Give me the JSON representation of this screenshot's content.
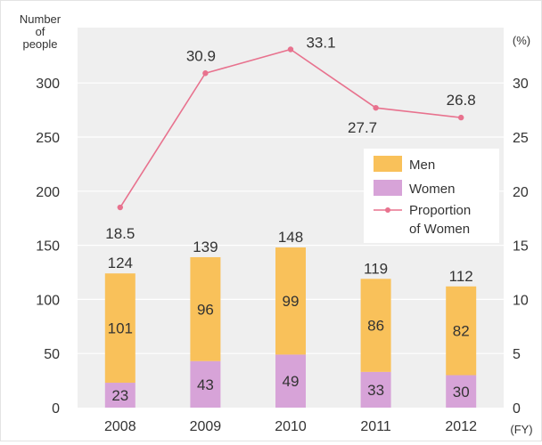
{
  "chart_data": {
    "type": "bar",
    "stacked": true,
    "categories": [
      "2008",
      "2009",
      "2010",
      "2011",
      "2012"
    ],
    "xlabel": "(FY)",
    "ylabel_left": "Number of people",
    "ylabel_right": "(%)",
    "ylim_left": [
      0,
      350
    ],
    "ylim_right": [
      0,
      35
    ],
    "yticks_left": [
      0,
      50,
      100,
      150,
      200,
      250,
      300
    ],
    "yticks_right": [
      0,
      5,
      10,
      15,
      20,
      25,
      30
    ],
    "grid": "horizontal",
    "legend_position": "right",
    "series": [
      {
        "name": "Men",
        "kind": "bar",
        "axis": "left",
        "color": "#f9c15a",
        "values": [
          101,
          96,
          99,
          86,
          82
        ]
      },
      {
        "name": "Women",
        "kind": "bar",
        "axis": "left",
        "color": "#d7a3d8",
        "values": [
          23,
          43,
          49,
          33,
          30
        ]
      },
      {
        "name": "Proportion of Women",
        "kind": "line",
        "axis": "right",
        "color": "#e8728e",
        "values": [
          18.5,
          30.9,
          33.1,
          27.7,
          26.8
        ]
      }
    ],
    "totals": [
      124,
      139,
      148,
      119,
      112
    ],
    "labels": {
      "ylabel_left_lines": [
        "Number",
        "of",
        "people"
      ],
      "legend_line_lines": [
        "Proportion",
        "of Women"
      ],
      "men_values": [
        "101",
        "96",
        "99",
        "86",
        "82"
      ],
      "women_values": [
        "23",
        "43",
        "49",
        "33",
        "30"
      ],
      "totals": [
        "124",
        "139",
        "148",
        "119",
        "112"
      ],
      "proportion": [
        "18.5",
        "30.9",
        "33.1",
        "27.7",
        "26.8"
      ]
    }
  }
}
